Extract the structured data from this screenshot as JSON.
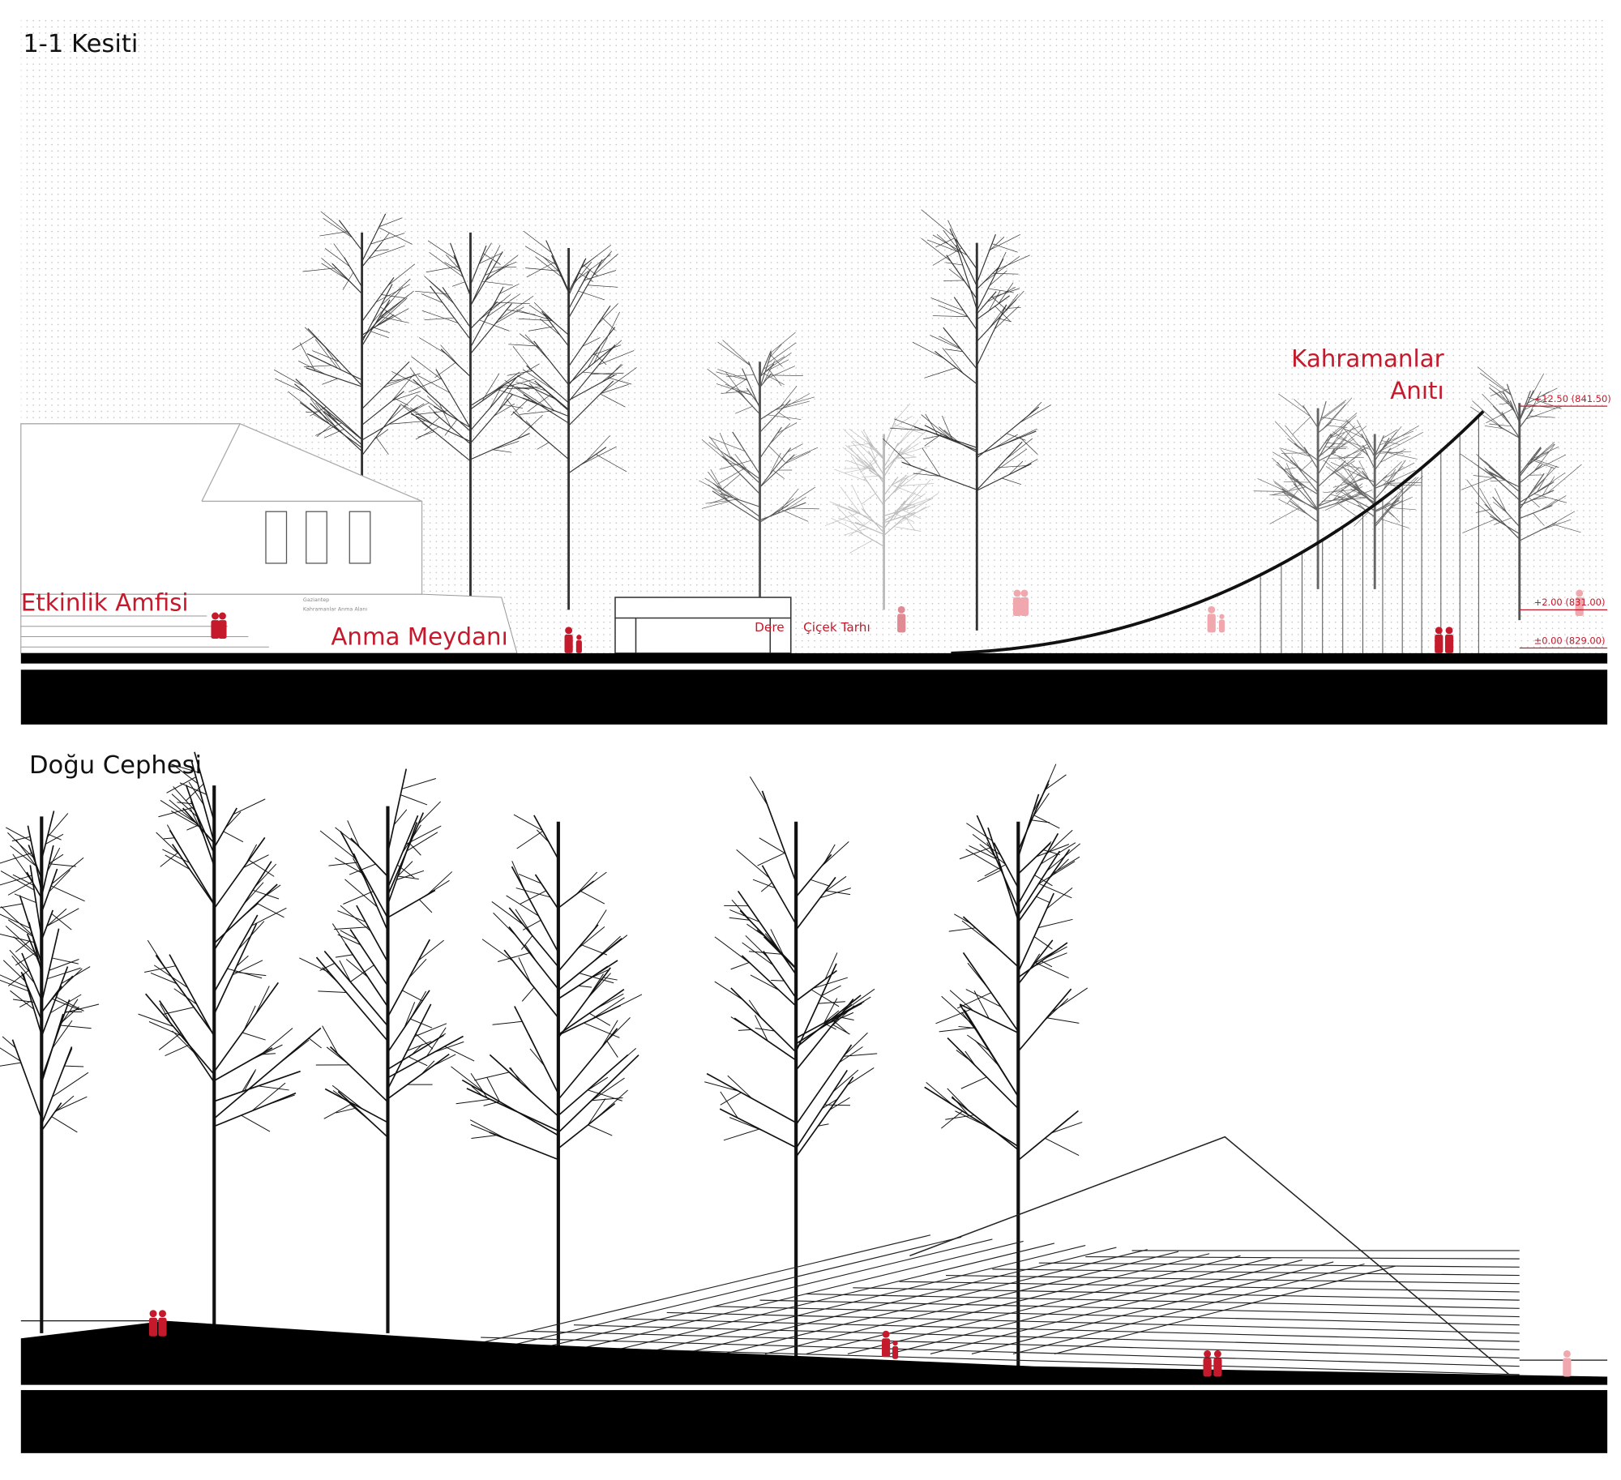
{
  "sections": [
    {
      "title": "1-1 Kesiti",
      "labels": [
        "Etkinlik Amfisi",
        "Anma Meydanı",
        "Dere",
        "Çiçek Tarhı"
      ],
      "monument": [
        "Kahramanlar",
        "Anıtı"
      ],
      "sign": [
        "Gaziantep",
        "Kahramanlar Anma Alanı"
      ],
      "levels": [
        "+12.50 (841.50)",
        "+2.00 (831.00)",
        "±0.00 (829.00)"
      ]
    },
    {
      "title": "Doğu Cephesi"
    }
  ]
}
